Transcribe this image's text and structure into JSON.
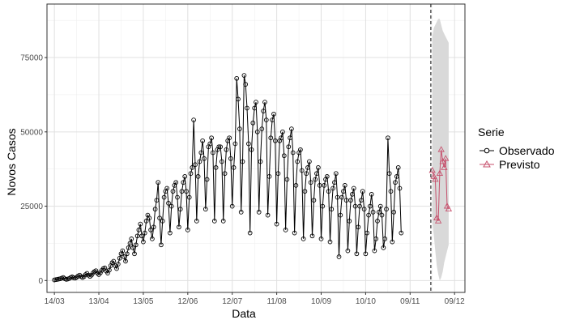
{
  "chart_data": {
    "type": "line",
    "xlabel": "Data",
    "ylabel": "Novos Casos",
    "x_ticks": [
      "14/03",
      "13/04",
      "13/05",
      "12/06",
      "12/07",
      "11/08",
      "10/09",
      "10/10",
      "09/11",
      "09/12"
    ],
    "y_ticks": [
      0,
      25000,
      50000,
      75000
    ],
    "y_tick_labels": [
      "0",
      "25000",
      "50000",
      "75000"
    ],
    "xlim": [
      "2020-03-09",
      "2020-12-16"
    ],
    "ylim": [
      -4000,
      93000
    ],
    "grid": true,
    "forecast_start_marker": "2020-11-23",
    "legend": {
      "title": "Serie",
      "placement": "right",
      "entries": [
        "Observado",
        "Previsto"
      ]
    },
    "colors": {
      "observed": "#000000",
      "predicted": "#c7526e",
      "ribbon": "#d9d9d9",
      "grid": "#e0e0e0",
      "border": "#333333"
    },
    "series": [
      {
        "name": "Observado",
        "start": "2020-03-14",
        "step_days": 1,
        "values": [
          200,
          300,
          400,
          500,
          600,
          800,
          1000,
          600,
          400,
          500,
          700,
          1000,
          1200,
          900,
          800,
          1100,
          1500,
          1800,
          1300,
          1000,
          1300,
          2000,
          2400,
          1800,
          1400,
          1800,
          2500,
          3000,
          3300,
          2500,
          2000,
          2600,
          3400,
          4000,
          4200,
          3200,
          2500,
          3500,
          5000,
          6000,
          6500,
          5000,
          4000,
          5500,
          7500,
          9000,
          10000,
          8000,
          6500,
          9000,
          11000,
          12500,
          14000,
          11000,
          9000,
          12000,
          15000,
          17000,
          19000,
          15000,
          13000,
          16000,
          20000,
          22000,
          21000,
          17000,
          14000,
          18000,
          24000,
          27000,
          33000,
          21000,
          12000,
          20000,
          28000,
          30000,
          31000,
          26000,
          16000,
          25000,
          30000,
          32000,
          33000,
          28000,
          18000,
          24000,
          30000,
          33000,
          35000,
          30000,
          17000,
          28000,
          36000,
          38000,
          54000,
          39000,
          20000,
          35000,
          40000,
          43000,
          47000,
          41000,
          24000,
          34000,
          45000,
          46000,
          48000,
          43000,
          20000,
          38000,
          44000,
          45000,
          45000,
          40000,
          20000,
          36000,
          44000,
          47000,
          48000,
          41000,
          25000,
          38000,
          46000,
          68000,
          61000,
          51000,
          23000,
          40000,
          69000,
          66000,
          58000,
          46000,
          16000,
          44000,
          53000,
          58000,
          60000,
          50000,
          23000,
          40000,
          51000,
          57000,
          60000,
          54000,
          22000,
          35000,
          48000,
          54000,
          56000,
          47000,
          19000,
          36000,
          47000,
          48000,
          50000,
          42000,
          17000,
          34000,
          45000,
          48000,
          51000,
          43000,
          16000,
          32000,
          40000,
          43000,
          44000,
          37000,
          14000,
          30000,
          36000,
          38000,
          40000,
          33000,
          15000,
          27000,
          34000,
          36000,
          38000,
          32000,
          14000,
          25000,
          32000,
          34000,
          35000,
          30000,
          13000,
          24000,
          31000,
          33000,
          36000,
          28000,
          8000,
          22000,
          28000,
          30000,
          32000,
          27000,
          10000,
          20000,
          27000,
          29000,
          31000,
          25000,
          9000,
          18000,
          25000,
          27000,
          30000,
          24000,
          9000,
          16000,
          22000,
          25000,
          29000,
          23000,
          10000,
          14000,
          20000,
          23000,
          25000,
          22000,
          11000,
          14000,
          24000,
          48000,
          36000,
          30000,
          13000,
          23000,
          33000,
          35000,
          38000,
          31000,
          16000
        ]
      },
      {
        "name": "Previsto",
        "start": "2020-11-24",
        "step_days": 1,
        "values": [
          37000,
          35000,
          34000,
          21000,
          20000,
          36000,
          44000,
          40000,
          38000,
          41000,
          25000,
          24000
        ]
      }
    ],
    "ribbon": {
      "start": "2020-11-24",
      "step_days": 1,
      "upper": [
        82000,
        85000,
        86000,
        87000,
        88000,
        88000,
        86000,
        84000,
        83000,
        82000,
        81000,
        80000
      ],
      "lower": [
        20000,
        15000,
        10000,
        5000,
        2000,
        0,
        1000,
        3000,
        6000,
        8000,
        10000,
        12000
      ]
    }
  }
}
